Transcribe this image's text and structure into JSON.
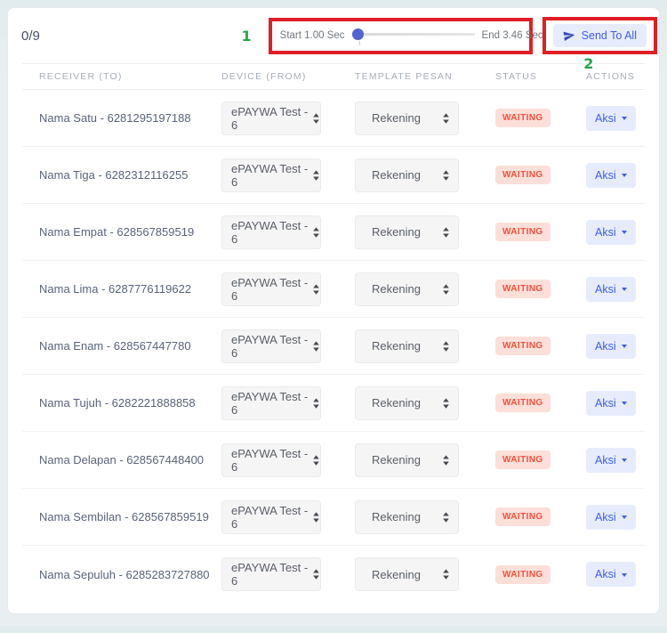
{
  "header": {
    "counter": "0/9"
  },
  "toolbar": {
    "slider": {
      "start_label": "Start 1.00 Sec",
      "end_label": "End 3.46 Sec",
      "value_percent": 0
    },
    "send_all_label": "Send To All"
  },
  "annotations": {
    "slider_number": "1",
    "send_number": "2"
  },
  "table": {
    "columns": [
      "RECEIVER (TO)",
      "DEVICE (FROM)",
      "TEMPLATE PESAN",
      "STATUS",
      "ACTIONS"
    ],
    "rows": [
      {
        "receiver": "Nama Satu - 6281295197188",
        "device": "ePAYWA Test - 6",
        "template": "Rekening",
        "status": "WAITING",
        "action": "Aksi"
      },
      {
        "receiver": "Nama Tiga - 6282312116255",
        "device": "ePAYWA Test - 6",
        "template": "Rekening",
        "status": "WAITING",
        "action": "Aksi"
      },
      {
        "receiver": "Nama Empat - 628567859519",
        "device": "ePAYWA Test - 6",
        "template": "Rekening",
        "status": "WAITING",
        "action": "Aksi"
      },
      {
        "receiver": "Nama Lima - 6287776119622",
        "device": "ePAYWA Test - 6",
        "template": "Rekening",
        "status": "WAITING",
        "action": "Aksi"
      },
      {
        "receiver": "Nama Enam - 628567447780",
        "device": "ePAYWA Test - 6",
        "template": "Rekening",
        "status": "WAITING",
        "action": "Aksi"
      },
      {
        "receiver": "Nama Tujuh - 6282221888858",
        "device": "ePAYWA Test - 6",
        "template": "Rekening",
        "status": "WAITING",
        "action": "Aksi"
      },
      {
        "receiver": "Nama Delapan - 628567448400",
        "device": "ePAYWA Test - 6",
        "template": "Rekening",
        "status": "WAITING",
        "action": "Aksi"
      },
      {
        "receiver": "Nama Sembilan - 628567859519",
        "device": "ePAYWA Test - 6",
        "template": "Rekening",
        "status": "WAITING",
        "action": "Aksi"
      },
      {
        "receiver": "Nama Sepuluh - 6285283727880",
        "device": "ePAYWA Test - 6",
        "template": "Rekening",
        "status": "WAITING",
        "action": "Aksi"
      }
    ]
  },
  "colors": {
    "accent_blue": "#3e5ce9",
    "button_bg": "#e7ecfd",
    "status_text": "#f4503a",
    "status_bg": "#fcdfd9",
    "slider_thumb": "#5164cf",
    "annotation_red": "#e01e25",
    "annotation_green": "#26a647"
  }
}
